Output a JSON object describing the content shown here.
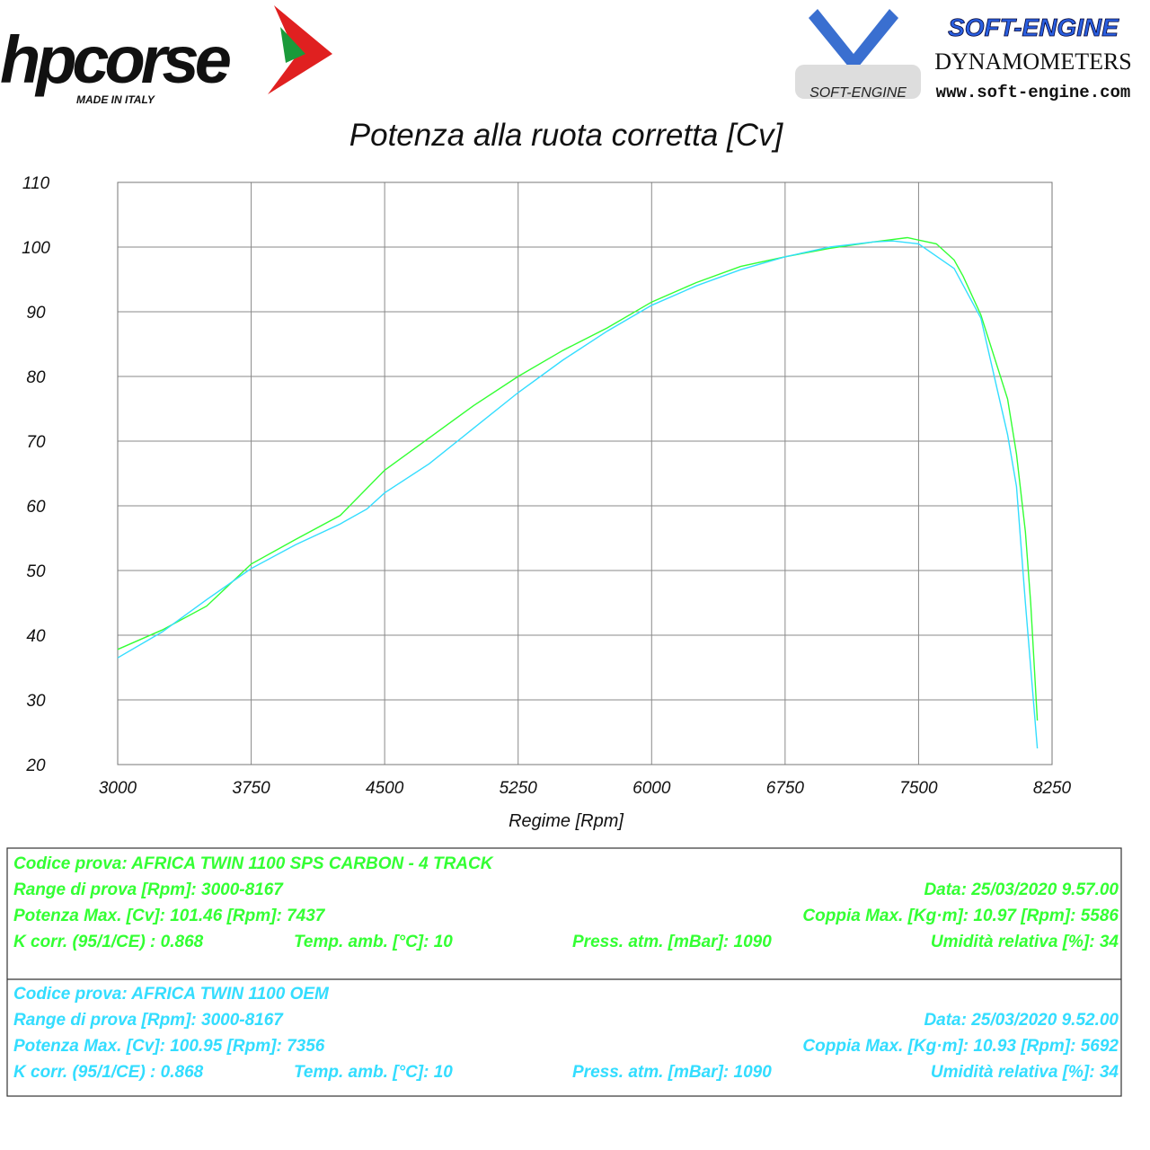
{
  "header": {
    "brand": "hpcorse",
    "brand_tagline": "MADE IN ITALY",
    "dyno_brand": "SOFT-ENGINE",
    "dyno_subtitle": "DYNAMOMETERS",
    "dyno_url": "www.soft-engine.com",
    "dyno_logo_text": "SOFT-ENGINE"
  },
  "chart_data": {
    "type": "line",
    "title": "Potenza alla ruota corretta [Cv]",
    "x_label": "Regime [Rpm]",
    "xlim": [
      3000,
      8250
    ],
    "xticks": [
      3000,
      3750,
      4500,
      5250,
      6000,
      6750,
      7500,
      8250
    ],
    "ylim": [
      20,
      110
    ],
    "yticks": [
      20,
      30,
      40,
      50,
      60,
      70,
      80,
      90,
      100,
      110
    ],
    "grid": true,
    "series": [
      {
        "color": "#33ff33",
        "x": [
          3000,
          3250,
          3500,
          3750,
          4000,
          4250,
          4500,
          4750,
          5000,
          5250,
          5500,
          5750,
          6000,
          6250,
          6500,
          6750,
          7000,
          7250,
          7437,
          7600,
          7700,
          7750,
          7850,
          8000,
          8050,
          8100,
          8130,
          8167
        ],
        "values": [
          37.8,
          40.8,
          44.5,
          51,
          54.8,
          58.5,
          65.5,
          70.5,
          75.5,
          80,
          84,
          87.5,
          91.5,
          94.5,
          97,
          98.5,
          99.8,
          100.8,
          101.46,
          100.5,
          98,
          95.5,
          89.5,
          76.5,
          68,
          56,
          45,
          26.8
        ]
      },
      {
        "color": "#33ddff",
        "x": [
          3000,
          3250,
          3500,
          3750,
          4000,
          4250,
          4400,
          4500,
          4750,
          5000,
          5250,
          5500,
          5750,
          6000,
          6250,
          6500,
          6750,
          7000,
          7250,
          7356,
          7500,
          7700,
          7850,
          8000,
          8050,
          8100,
          8167
        ],
        "values": [
          36.5,
          40.5,
          45.5,
          50.3,
          54,
          57.2,
          59.5,
          62,
          66.5,
          72,
          77.5,
          82.5,
          87,
          91,
          94,
          96.5,
          98.5,
          100,
          100.8,
          100.95,
          100.5,
          96.7,
          89,
          71,
          63,
          45,
          22.5
        ]
      }
    ]
  },
  "info": [
    {
      "color": "#33ff33",
      "code": "Codice prova: AFRICA TWIN 1100   SPS CARBON  -  4 TRACK",
      "range": "Range di prova [Rpm]: 3000-8167",
      "date": "Data: 25/03/2020   9.57.00",
      "power": "Potenza Max. [Cv]: 101.46   [Rpm]: 7437",
      "torque": "Coppia Max. [Kg·m]: 10.97  [Rpm]: 5586",
      "kcorr": "K corr. (95/1/CE) : 0.868",
      "temp": "Temp. amb. [°C]: 10",
      "press": "Press. atm. [mBar]: 1090",
      "humidity": "Umidità relativa [%]: 34"
    },
    {
      "color": "#33ddff",
      "code": "Codice prova: AFRICA TWIN 1100  OEM",
      "range": "Range di prova [Rpm]: 3000-8167",
      "date": "Data: 25/03/2020   9.52.00",
      "power": "Potenza Max. [Cv]: 100.95   [Rpm]: 7356",
      "torque": "Coppia Max. [Kg·m]: 10.93  [Rpm]: 5692",
      "kcorr": "K corr. (95/1/CE) : 0.868",
      "temp": "Temp. amb. [°C]: 10",
      "press": "Press. atm. [mBar]: 1090",
      "humidity": "Umidità relativa [%]: 34"
    }
  ]
}
